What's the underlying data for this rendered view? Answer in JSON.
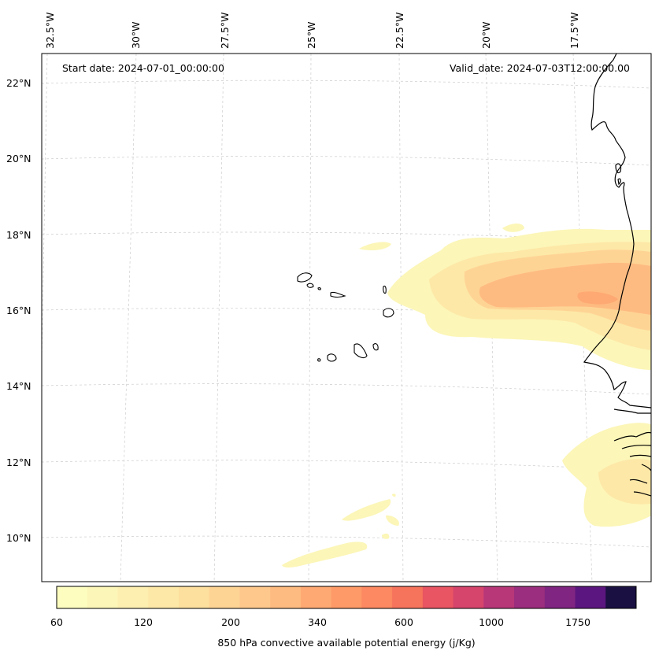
{
  "header": {
    "start_date": "Start date: 2024-07-01_00:00:00",
    "valid_date": "Valid_date: 2024-07-03T12:00:00.00"
  },
  "axes": {
    "lon_labels": [
      "32.5°W",
      "30°W",
      "27.5°W",
      "25°W",
      "22.5°W",
      "20°W",
      "17.5°W"
    ],
    "lat_labels": [
      "22°N",
      "20°N",
      "18°N",
      "16°N",
      "14°N",
      "12°N",
      "10°N"
    ]
  },
  "colorbar": {
    "label": "850 hPa convective available potential energy (j/Kg)",
    "tick_labels": [
      "60",
      "120",
      "200",
      "340",
      "600",
      "1000",
      "1750"
    ],
    "colors": [
      "#fcfdbf",
      "#fcf6b8",
      "#fcefb0",
      "#fde8a7",
      "#fddf9e",
      "#fed495",
      "#fec88c",
      "#febb81",
      "#fea973",
      "#fe9a67",
      "#fc8961",
      "#f6735c",
      "#e95562",
      "#d6456c",
      "#b73779",
      "#9b2e7e",
      "#802582",
      "#5c167f",
      "#1a1042"
    ]
  },
  "map": {
    "features": [
      "coastline-mauritania-senegal",
      "cape-verde-islands",
      "cape-verde-islands-south",
      "cape-verde-islands-east",
      "cape-verde-islands-west",
      "cape-verde-islands-central",
      "cape-verde-islands-sw",
      "guinea-bissau-coast",
      "gambia-coast"
    ]
  }
}
